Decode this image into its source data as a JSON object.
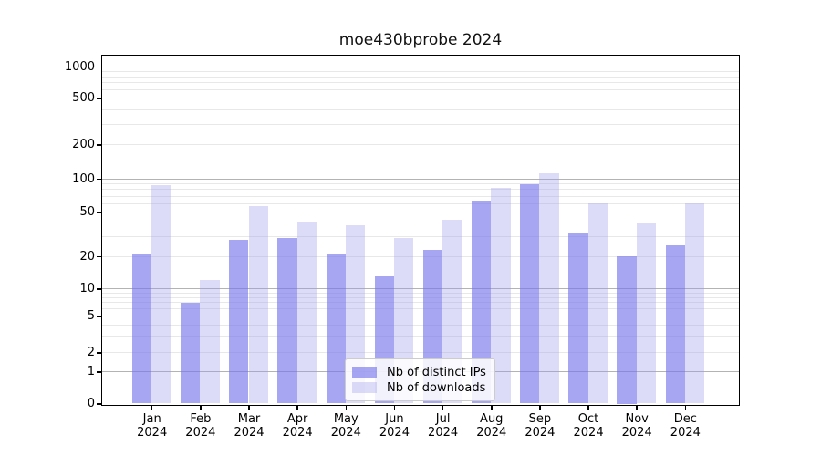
{
  "chart_data": {
    "type": "bar",
    "title": "moe430bprobe 2024",
    "categories": [
      "Jan",
      "Feb",
      "Mar",
      "Apr",
      "May",
      "Jun",
      "Jul",
      "Aug",
      "Sep",
      "Oct",
      "Nov",
      "Dec"
    ],
    "x_tick_year": "2024",
    "series": [
      {
        "name": "Nb of distinct IPs",
        "color": "rgba(118,118,235,0.65)",
        "values": [
          21,
          7,
          28,
          29,
          21,
          13,
          23,
          64,
          90,
          33,
          20,
          25
        ]
      },
      {
        "name": "Nb of downloads",
        "color": "rgba(155,155,235,0.35)",
        "values": [
          88,
          12,
          57,
          41,
          38,
          29,
          43,
          83,
          113,
          60,
          40,
          60
        ]
      }
    ],
    "y_ticks": [
      0,
      1,
      2,
      5,
      10,
      20,
      50,
      100,
      200,
      500,
      1000
    ],
    "y_scale": "symlog",
    "ylim": [
      0,
      1270
    ],
    "grid": true,
    "legend_position": "lower center",
    "colors": {
      "bar_distinct_ips_rendered": "#a8a8f0",
      "bar_downloads_rendered": "#dcdcf8",
      "grid_major": "#b3b3b3",
      "grid_minor": "#e8e8e8"
    }
  }
}
